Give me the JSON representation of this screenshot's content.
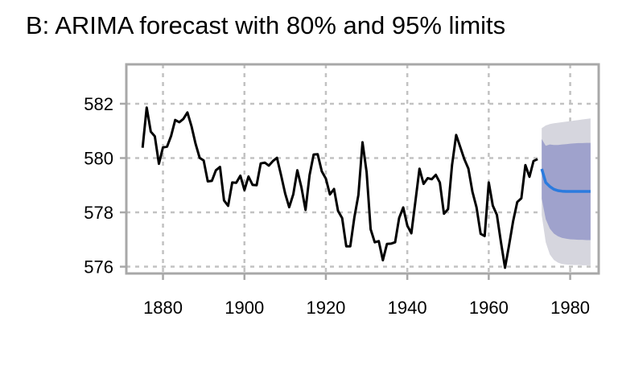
{
  "chart_data": {
    "type": "line",
    "title": "B: ARIMA forecast with 80% and 95% limits",
    "xlabel": "",
    "ylabel": "",
    "xlim": [
      1871,
      1987
    ],
    "ylim": [
      575.75,
      583.45
    ],
    "x_ticks": [
      1880,
      1900,
      1920,
      1940,
      1960,
      1980
    ],
    "y_ticks": [
      576,
      578,
      580,
      582
    ],
    "grid": true,
    "legend": "none",
    "colors": {
      "observed": "#000000",
      "forecast": "#2b7bde",
      "band95": "#d6d6de",
      "band80": "#9fa2cc",
      "grid": "#c2c2c2",
      "frame": "#a8a8a8"
    },
    "series": [
      {
        "id": "observed",
        "x": [
          1875,
          1876,
          1877,
          1878,
          1879,
          1880,
          1881,
          1882,
          1883,
          1884,
          1885,
          1886,
          1887,
          1888,
          1889,
          1890,
          1891,
          1892,
          1893,
          1894,
          1895,
          1896,
          1897,
          1898,
          1899,
          1900,
          1901,
          1902,
          1903,
          1904,
          1905,
          1906,
          1907,
          1908,
          1909,
          1910,
          1911,
          1912,
          1913,
          1914,
          1915,
          1916,
          1917,
          1918,
          1919,
          1920,
          1921,
          1922,
          1923,
          1924,
          1925,
          1926,
          1927,
          1928,
          1929,
          1930,
          1931,
          1932,
          1933,
          1934,
          1935,
          1936,
          1937,
          1938,
          1939,
          1940,
          1941,
          1942,
          1943,
          1944,
          1945,
          1946,
          1947,
          1948,
          1949,
          1950,
          1951,
          1952,
          1953,
          1954,
          1955,
          1956,
          1957,
          1958,
          1959,
          1960,
          1961,
          1962,
          1963,
          1964,
          1965,
          1966,
          1967,
          1968,
          1969,
          1970,
          1971,
          1972
        ],
        "values": [
          580.38,
          581.86,
          580.97,
          580.8,
          579.79,
          580.39,
          580.42,
          580.82,
          581.4,
          581.32,
          581.44,
          581.68,
          581.17,
          580.53,
          580.01,
          579.91,
          579.14,
          579.16,
          579.55,
          579.67,
          578.44,
          578.24,
          579.1,
          579.09,
          579.35,
          578.82,
          579.32,
          579.01,
          579.0,
          579.8,
          579.83,
          579.72,
          579.89,
          580.01,
          579.37,
          578.69,
          578.19,
          578.67,
          579.55,
          578.92,
          578.09,
          579.37,
          580.13,
          580.14,
          579.51,
          579.24,
          578.66,
          578.86,
          578.05,
          577.79,
          576.75,
          576.75,
          577.82,
          578.64,
          580.58,
          579.48,
          577.38,
          576.9,
          576.94,
          576.24,
          576.84,
          576.85,
          576.9,
          577.79,
          578.18,
          577.51,
          577.23,
          578.42,
          579.61,
          579.05,
          579.26,
          579.22,
          579.38,
          579.1,
          577.95,
          578.12,
          579.75,
          580.85,
          580.41,
          579.96,
          579.61,
          578.76,
          578.18,
          577.21,
          577.13,
          579.1,
          578.25,
          577.91,
          576.89,
          575.96,
          576.8,
          577.68,
          578.38,
          578.52,
          579.74,
          579.31,
          579.89,
          579.96
        ]
      },
      {
        "id": "forecast",
        "x": [
          1973,
          1974,
          1975,
          1976,
          1977,
          1978,
          1979,
          1980,
          1981,
          1982,
          1983,
          1984,
          1985
        ],
        "values": [
          579.6,
          579.1,
          578.95,
          578.85,
          578.8,
          578.78,
          578.77,
          578.77,
          578.77,
          578.77,
          578.77,
          578.77,
          578.77
        ],
        "lo80": [
          578.5,
          577.75,
          577.4,
          577.22,
          577.12,
          577.06,
          577.03,
          577.01,
          577.0,
          576.99,
          576.99,
          576.98,
          576.98
        ],
        "hi80": [
          580.7,
          580.45,
          580.5,
          580.48,
          580.48,
          580.5,
          580.51,
          580.53,
          580.54,
          580.55,
          580.55,
          580.56,
          580.56
        ],
        "lo95": [
          577.9,
          576.9,
          576.45,
          576.25,
          576.15,
          576.1,
          576.08,
          576.07,
          576.06,
          576.06,
          576.05,
          576.05,
          576.05
        ],
        "hi95": [
          581.1,
          581.2,
          581.25,
          581.28,
          581.3,
          581.32,
          581.34,
          581.36,
          581.38,
          581.4,
          581.42,
          581.44,
          581.46
        ]
      }
    ]
  }
}
